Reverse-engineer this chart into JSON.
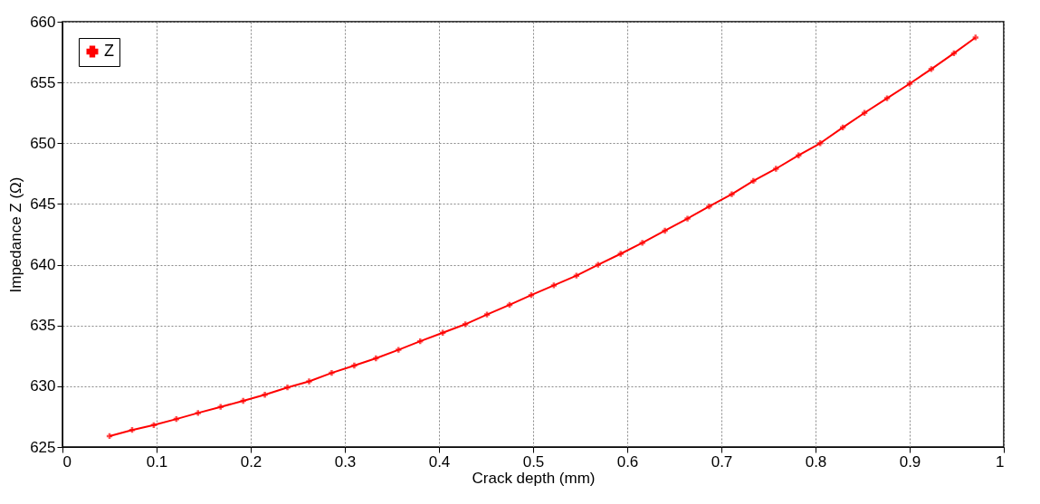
{
  "chart_data": {
    "type": "line",
    "xlabel": "Crack depth (mm)",
    "ylabel": "Impedance Z (Ω)",
    "x": [
      0.05,
      0.074,
      0.097,
      0.121,
      0.144,
      0.168,
      0.192,
      0.215,
      0.239,
      0.262,
      0.286,
      0.31,
      0.333,
      0.357,
      0.38,
      0.404,
      0.428,
      0.451,
      0.475,
      0.498,
      0.522,
      0.546,
      0.569,
      0.593,
      0.616,
      0.64,
      0.664,
      0.687,
      0.711,
      0.734,
      0.758,
      0.782,
      0.805,
      0.829,
      0.852,
      0.876,
      0.9,
      0.923,
      0.947,
      0.97
    ],
    "series": [
      {
        "name": "Z",
        "color": "#ff0000",
        "values": [
          625.9,
          626.4,
          626.8,
          627.3,
          627.8,
          628.3,
          628.8,
          629.3,
          629.9,
          630.4,
          631.1,
          631.7,
          632.3,
          633.0,
          633.7,
          634.4,
          635.1,
          635.9,
          636.7,
          637.5,
          638.3,
          639.1,
          640.0,
          640.9,
          641.8,
          642.8,
          643.8,
          644.8,
          645.8,
          646.9,
          647.9,
          649.0,
          650.0,
          651.3,
          652.5,
          653.7,
          654.9,
          656.1,
          657.4,
          658.7
        ]
      }
    ],
    "xlim": [
      0,
      1
    ],
    "xticks": [
      0,
      0.1,
      0.2,
      0.3,
      0.4,
      0.5,
      0.6,
      0.7,
      0.8,
      0.9,
      1
    ],
    "ylim": [
      625,
      660
    ],
    "yticks": [
      625,
      630,
      635,
      640,
      645,
      650,
      655,
      660
    ],
    "grid": true,
    "legend": "top left",
    "marker": "cross",
    "line_style": "solid"
  }
}
